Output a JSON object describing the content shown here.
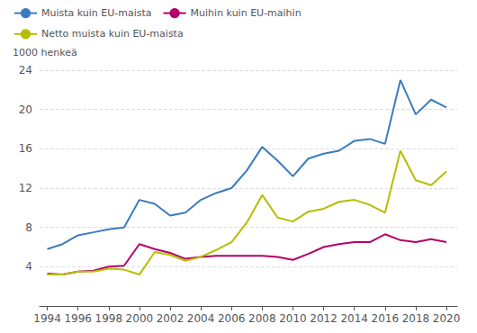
{
  "chart_data": {
    "type": "line",
    "ylabel": "1000 henkeä",
    "x": [
      1994,
      1995,
      1996,
      1997,
      1998,
      1999,
      2000,
      2001,
      2002,
      2003,
      2004,
      2005,
      2006,
      2007,
      2008,
      2009,
      2010,
      2011,
      2012,
      2013,
      2014,
      2015,
      2016,
      2017,
      2018,
      2019,
      2020
    ],
    "series": [
      {
        "name": "Muista kuin EU-maista",
        "color": "#3a7bbf",
        "values": [
          5.8,
          6.3,
          7.2,
          7.5,
          7.8,
          8.0,
          10.8,
          10.4,
          9.2,
          9.5,
          10.8,
          11.5,
          12.0,
          13.8,
          16.2,
          14.8,
          13.2,
          15.0,
          15.5,
          15.8,
          16.8,
          17.0,
          16.5,
          23.0,
          19.5,
          21.0,
          20.2
        ]
      },
      {
        "name": "Muihin kuin EU-maihin",
        "color": "#b5006a",
        "values": [
          3.3,
          3.2,
          3.5,
          3.6,
          4.0,
          4.1,
          6.3,
          5.8,
          5.4,
          4.8,
          5.0,
          5.1,
          5.1,
          5.1,
          5.1,
          5.0,
          4.7,
          5.3,
          6.0,
          6.3,
          6.5,
          6.5,
          7.3,
          6.7,
          6.5,
          6.8,
          6.5
        ]
      },
      {
        "name": "Netto muista kuin EU-maista",
        "color": "#b5be00",
        "values": [
          3.2,
          3.2,
          3.5,
          3.5,
          3.8,
          3.7,
          3.2,
          5.5,
          5.2,
          4.6,
          5.0,
          5.7,
          6.5,
          8.5,
          11.3,
          9.0,
          8.6,
          9.6,
          9.9,
          10.6,
          10.8,
          10.3,
          9.5,
          15.8,
          12.8,
          12.3,
          13.7
        ]
      }
    ],
    "xlim": [
      1993.5,
      2020.7
    ],
    "xticks": [
      1994,
      1996,
      1998,
      2000,
      2002,
      2004,
      2006,
      2008,
      2010,
      2012,
      2014,
      2016,
      2018,
      2020
    ],
    "ylim": [
      0,
      24
    ],
    "yticks": [
      {
        "value": 0,
        "label": ""
      },
      4,
      8,
      12,
      16,
      20,
      24
    ],
    "grid": true,
    "legend": "upper left"
  }
}
